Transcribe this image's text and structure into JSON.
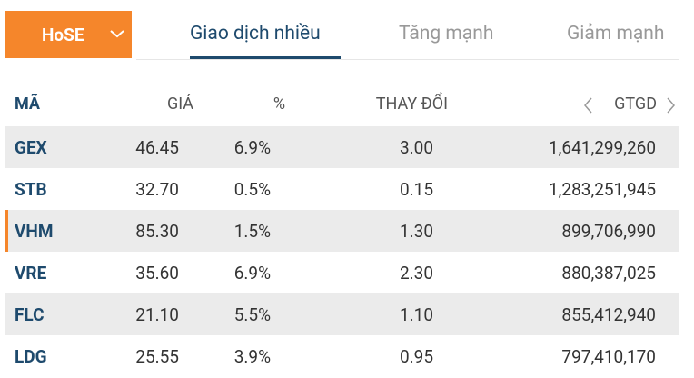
{
  "market": {
    "selected": "HoSE"
  },
  "tabs": [
    "Giao dịch nhiều",
    "Tăng mạnh",
    "Giảm mạnh"
  ],
  "active_tab": 0,
  "table": {
    "headers": [
      "MÃ",
      "GIÁ",
      "%",
      "THAY ĐỔI",
      "GTGD"
    ],
    "rows": [
      [
        "GEX",
        "46.45",
        "6.9%",
        "3.00",
        "1,641,299,260"
      ],
      [
        "STB",
        "32.70",
        "0.5%",
        "0.15",
        "1,283,251,945"
      ],
      [
        "VHM",
        "85.30",
        "1.5%",
        "1.30",
        "899,706,990"
      ],
      [
        "VRE",
        "35.60",
        "6.9%",
        "2.30",
        "880,387,025"
      ],
      [
        "FLC",
        "21.10",
        "5.5%",
        "1.10",
        "855,412,940"
      ],
      [
        "LDG",
        "25.55",
        "3.9%",
        "0.95",
        "797,410,170"
      ]
    ],
    "highlighted_row": 2
  }
}
